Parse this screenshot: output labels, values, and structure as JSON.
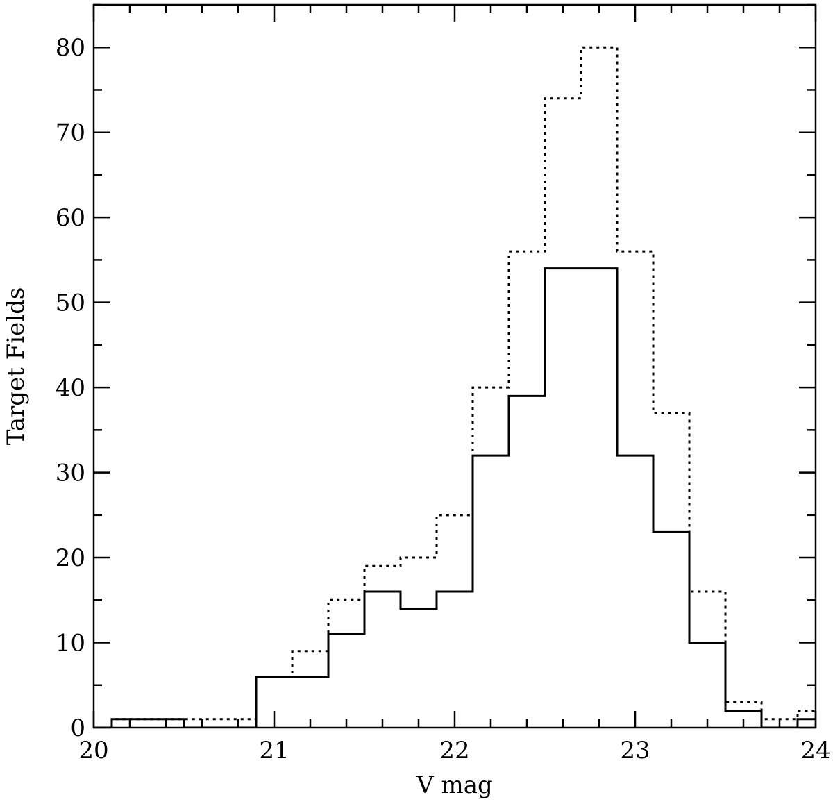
{
  "chart_data": {
    "type": "histogram",
    "xlabel": "V mag",
    "ylabel": "Target Fields",
    "xlim": [
      20,
      24
    ],
    "ylim": [
      0,
      85
    ],
    "x_ticks": [
      20,
      21,
      22,
      23,
      24
    ],
    "y_ticks": [
      0,
      10,
      20,
      30,
      40,
      50,
      60,
      70,
      80
    ],
    "x_minor_step": 0.2,
    "y_minor_step": 5,
    "bin_edges": [
      -0.1,
      0.1,
      0.3,
      0.5,
      0.7,
      0.9,
      1.1,
      1.3,
      1.5,
      1.7,
      1.9,
      2.1,
      2.3,
      2.5,
      2.7,
      2.9,
      3.1,
      3.3,
      3.5,
      3.7,
      3.9,
      4.1
    ],
    "bin_edges_offset": 20,
    "series": [
      {
        "style": "solid",
        "values": [
          0,
          1,
          1,
          0,
          0,
          6,
          6,
          11,
          16,
          14,
          16,
          32,
          39,
          54,
          54,
          32,
          23,
          10,
          2,
          0,
          1
        ]
      },
      {
        "style": "dotted",
        "values": [
          0,
          1,
          1,
          1,
          1,
          6,
          9,
          15,
          19,
          20,
          25,
          40,
          56,
          74,
          80,
          56,
          37,
          16,
          3,
          1,
          2
        ]
      }
    ],
    "grid": false,
    "legend": "none"
  }
}
